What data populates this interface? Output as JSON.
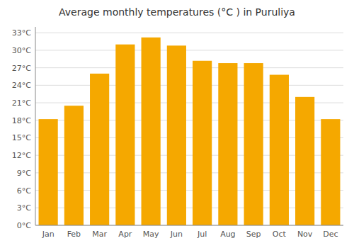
{
  "chart_data": {
    "type": "bar",
    "title": "Average monthly temperatures (°C ) in Puruliya",
    "categories": [
      "Jan",
      "Feb",
      "Mar",
      "Apr",
      "May",
      "Jun",
      "Jul",
      "Aug",
      "Sep",
      "Oct",
      "Nov",
      "Dec"
    ],
    "values": [
      18.2,
      20.5,
      26.0,
      31.0,
      32.2,
      30.8,
      28.2,
      27.8,
      27.8,
      25.8,
      22.0,
      18.2
    ],
    "color": "#F5A800",
    "ylim": [
      0,
      34
    ],
    "yticks": [
      {
        "value": 0,
        "label": "0°C"
      },
      {
        "value": 3,
        "label": "3°C"
      },
      {
        "value": 6,
        "label": "6°C"
      },
      {
        "value": 9,
        "label": "9°C"
      },
      {
        "value": 12,
        "label": "12°C"
      },
      {
        "value": 15,
        "label": "15°C"
      },
      {
        "value": 18,
        "label": "18°C"
      },
      {
        "value": 21,
        "label": "21°C"
      },
      {
        "value": 24,
        "label": "24°C"
      },
      {
        "value": 27,
        "label": "27°C"
      },
      {
        "value": 30,
        "label": "30°C"
      },
      {
        "value": 33,
        "label": "33°C"
      }
    ],
    "grid": true
  }
}
